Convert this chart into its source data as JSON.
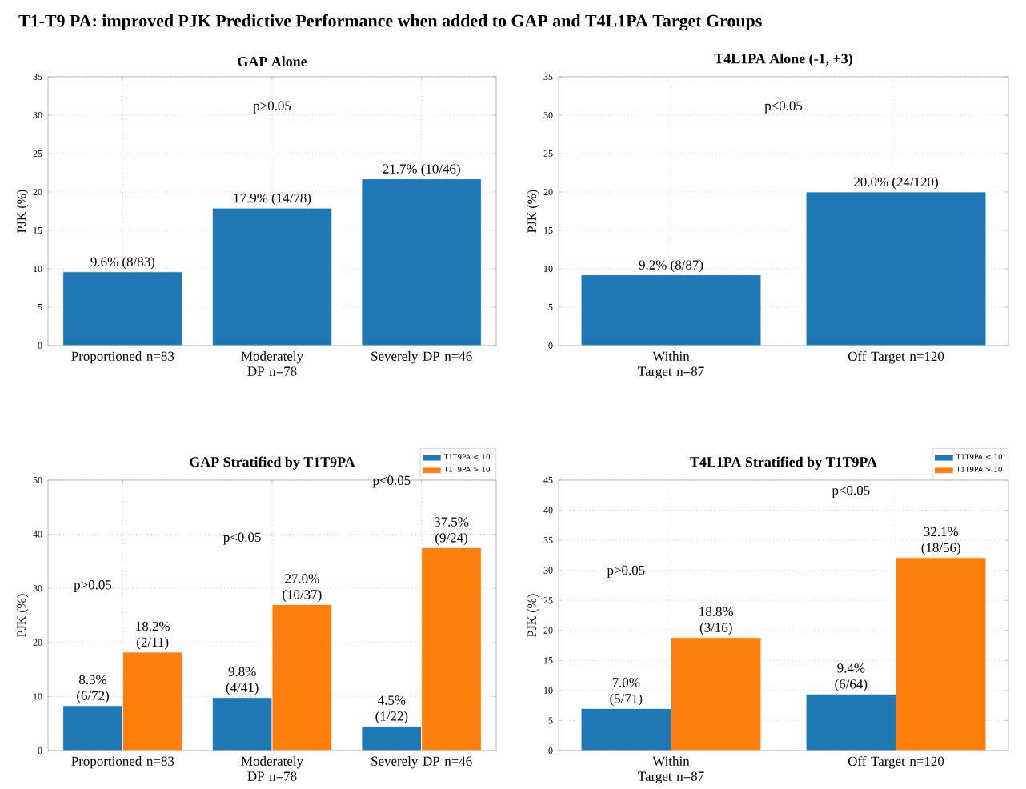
{
  "chart_data": [
    {
      "type": "bar",
      "title": "GAP Alone",
      "ylabel": "PJK (%)",
      "categories": [
        "Proportioned n=83",
        "Moderately DP n=78",
        "Severely DP n=46"
      ],
      "values": [
        9.6,
        17.9,
        21.7
      ],
      "color": "#1f77b4",
      "value_labels": [
        "9.6% (8/83)",
        "17.9% (14/78)",
        "21.7% (10/46)"
      ],
      "ylim": [
        0,
        35
      ],
      "yticks": [
        0,
        5,
        10,
        15,
        20,
        25,
        30,
        35
      ],
      "grid": true,
      "annotations": [
        "T1-T9 PA: improved PJK Predictive Performance when added to GAP and T4L1PA Target Groups",
        "p>0.05"
      ]
    },
    {
      "type": "bar",
      "title": "T4L1PA Alone (-1, +3)",
      "ylabel": "PJK (%)",
      "categories": [
        "Within Target n=87",
        "Off Target n=120"
      ],
      "values": [
        9.2,
        20.0
      ],
      "color": "#1f77b4",
      "value_labels": [
        "9.2% (8/87)",
        "20.0% (24/120)"
      ],
      "ylim": [
        0,
        35
      ],
      "yticks": [
        0,
        5,
        10,
        15,
        20,
        25,
        30,
        35
      ],
      "grid": true,
      "annotations": [
        "p<0.05"
      ]
    },
    {
      "type": "bar",
      "title": "GAP Stratified by T1T9PA",
      "ylabel": "PJK (%)",
      "categories": [
        "Proportioned n=83",
        "Moderately DP n=78",
        "Severely DP n=46"
      ],
      "series": [
        {
          "name": "T1T9PA < 10",
          "color": "#1f77b4",
          "values": [
            8.3,
            9.8,
            4.5
          ],
          "value_labels": [
            "8.3% (6/72)",
            "9.8% (4/41)",
            "4.5% (1/22)"
          ]
        },
        {
          "name": "T1T9PA > 10",
          "color": "#ff7f0e",
          "values": [
            18.2,
            27.0,
            37.5
          ],
          "value_labels": [
            "18.2% (2/11)",
            "27.0% (10/37)",
            "37.5% (9/24)"
          ]
        }
      ],
      "ylim": [
        0,
        50
      ],
      "yticks": [
        0,
        10,
        20,
        30,
        40,
        50
      ],
      "grid": true,
      "legend": "top right",
      "annotations": [
        "p>0.05",
        "p<0.05",
        "p<0.05"
      ]
    },
    {
      "type": "bar",
      "title": "T4L1PA Stratified by T1T9PA",
      "ylabel": "PJK (%)",
      "categories": [
        "Within Target n=87",
        "Off Target n=120"
      ],
      "series": [
        {
          "name": "T1T9PA < 10",
          "color": "#1f77b4",
          "values": [
            7.0,
            9.4
          ],
          "value_labels": [
            "7.0% (5/71)",
            "9.4% (6/64)"
          ]
        },
        {
          "name": "T1T9PA > 10",
          "color": "#ff7f0e",
          "values": [
            18.8,
            32.1
          ],
          "value_labels": [
            "18.8% (3/16)",
            "32.1% (18/56)"
          ]
        }
      ],
      "ylim": [
        0,
        45
      ],
      "yticks": [
        0,
        5,
        10,
        15,
        20,
        25,
        30,
        35,
        40,
        45
      ],
      "grid": true,
      "legend": "top right",
      "annotations": [
        "p>0.05",
        "p<0.05"
      ]
    }
  ]
}
